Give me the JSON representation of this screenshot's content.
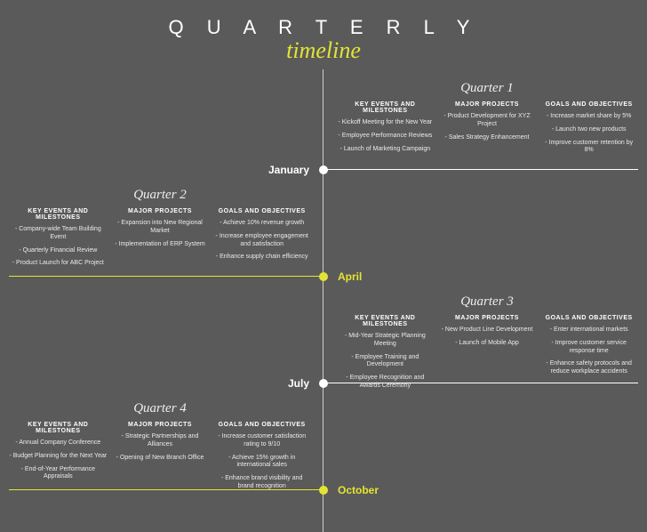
{
  "colors": {
    "background": "#5a5a5a",
    "accent": "#e4e432",
    "text": "#ffffff",
    "line": "#cfcfcf"
  },
  "header": {
    "title": "Q U A R T E R L Y",
    "subtitle": "timeline"
  },
  "months": {
    "q1": "January",
    "q2": "April",
    "q3": "July",
    "q4": "October"
  },
  "columnHeaders": {
    "events": "KEY EVENTS AND MILESTONES",
    "projects": "MAJOR PROJECTS",
    "goals": "GOALS AND OBJECTIVES"
  },
  "quarters": {
    "q1": {
      "title": "Quarter 1",
      "events": [
        "Kickoff Meeting for the New Year",
        "Employee Performance Reviews",
        "Launch of Marketing Campaign"
      ],
      "projects": [
        "Product Development for XYZ Project",
        "Sales Strategy Enhancement"
      ],
      "goals": [
        "Increase market share by 5%",
        "Launch two new products",
        "Improve customer retention by 8%"
      ]
    },
    "q2": {
      "title": "Quarter 2",
      "events": [
        "Company-wide Team Building Event",
        "Quarterly Financial Review",
        "Product Launch for ABC Project"
      ],
      "projects": [
        "Expansion into New Regional Market",
        "Implementation of ERP System"
      ],
      "goals": [
        "Achieve 10% revenue growth",
        "Increase employee engagement and satisfaction",
        "Enhance supply chain efficiency"
      ]
    },
    "q3": {
      "title": "Quarter 3",
      "events": [
        "Mid-Year Strategic Planning Meeting",
        "Employee Training and Development",
        "Employee Recognition and Awards Ceremony"
      ],
      "projects": [
        "New Product Line Development",
        "Launch of Mobile App"
      ],
      "goals": [
        "Enter international markets",
        "Improve customer service response time",
        "Enhance safety protocols and reduce workplace accidents"
      ]
    },
    "q4": {
      "title": "Quarter 4",
      "events": [
        "Annual Company Conference",
        "Budget Planning for the Next Year",
        "End-of-Year Performance Appraisals"
      ],
      "projects": [
        "Strategic Partnerships and Alliances",
        "Opening of New Branch Office"
      ],
      "goals": [
        "Increase customer satisfaction rating to 9/10",
        "Achieve 15% growth in international sales",
        "Enhance brand visibility and brand recognition"
      ]
    }
  },
  "layout": {
    "dot_y": {
      "q1": 108,
      "q2": 228,
      "q3": 348,
      "q4": 468
    }
  }
}
